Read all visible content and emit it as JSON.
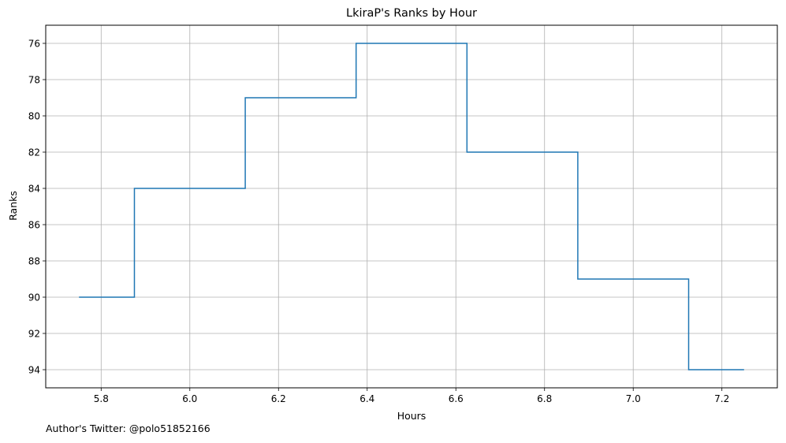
{
  "chart_data": {
    "type": "line",
    "drawstyle": "steps-mid",
    "title": "LkiraP's Ranks by Hour",
    "xlabel": "Hours",
    "ylabel": "Ranks",
    "x": [
      5.75,
      6.0,
      6.25,
      6.5,
      6.75,
      7.0,
      7.25
    ],
    "series": [
      {
        "values": [
          90,
          84,
          79,
          76,
          82,
          89,
          94
        ],
        "color": "#1f77b4"
      }
    ],
    "xlim": [
      5.675,
      7.325
    ],
    "ylim": [
      75,
      95
    ],
    "y_inverted": true,
    "xticks": [
      "5.8",
      "6.0",
      "6.2",
      "6.4",
      "6.6",
      "6.8",
      "7.0",
      "7.2"
    ],
    "yticks": [
      "76",
      "78",
      "80",
      "82",
      "84",
      "86",
      "88",
      "90",
      "92",
      "94"
    ],
    "grid": true
  },
  "footer": "Author's Twitter: @polo51852166"
}
